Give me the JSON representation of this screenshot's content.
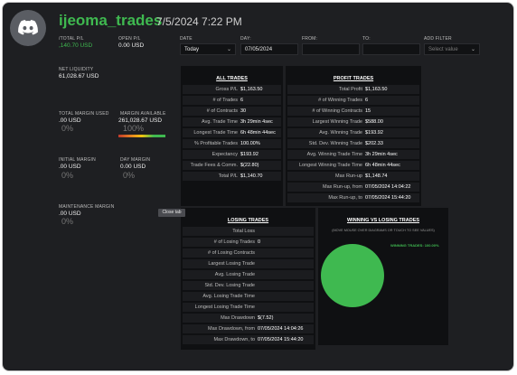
{
  "header": {
    "username": "ijeoma_trades",
    "datetime": "7/5/2024 7:22 PM"
  },
  "stats": {
    "total_pl_label": "/TOTAL P/L",
    "total_pl_value": ",140.70 USD",
    "open_pl_label": "OPEN P/L",
    "open_pl_value": "0.00 USD",
    "net_liquidity_label": "NET LIQUIDITY",
    "net_liquidity_value": "61,028.67 USD",
    "total_margin_used_label": "TOTAL MARGIN USED",
    "total_margin_used_value": ".00 USD",
    "total_margin_used_pct": "0%",
    "margin_available_label": "MARGIN AVAILABLE",
    "margin_available_value": "261,028.67 USD",
    "margin_available_pct": "100%",
    "initial_margin_label": "INITIAL MARGIN",
    "initial_margin_value": ".00 USD",
    "initial_margin_pct": "0%",
    "day_margin_label": "DAY MARGIN",
    "day_margin_value": "0.00 USD",
    "day_margin_pct": "0%",
    "maintenance_margin_label": "MAINTENANCE MARGIN",
    "maintenance_margin_value": ".00 USD",
    "maintenance_margin_pct": "0%"
  },
  "filters": {
    "date_label": "DATE",
    "date_value": "Today",
    "day_label": "DAY:",
    "day_value": "07/05/2024",
    "from_label": "FROM:",
    "to_label": "TO:",
    "add_filter_label": "ADD FILTER",
    "add_filter_placeholder": "Select value"
  },
  "all_trades": {
    "title": "ALL TRADES",
    "rows": [
      {
        "k": "Gross P/L",
        "v": "$1,163.50"
      },
      {
        "k": "# of Trades",
        "v": "6"
      },
      {
        "k": "# of Contracts",
        "v": "30"
      },
      {
        "k": "Avg. Trade Time",
        "v": "3h 29min 4sec"
      },
      {
        "k": "Longest Trade Time",
        "v": "6h 48min 44sec"
      },
      {
        "k": "% Profitable Trades",
        "v": "100.00%"
      },
      {
        "k": "Expectancy",
        "v": "$193.92"
      },
      {
        "k": "Trade Fees & Comm.",
        "v": "$(22.80)"
      },
      {
        "k": "Total P/L",
        "v": "$1,140.70"
      }
    ]
  },
  "profit_trades": {
    "title": "PROFIT TRADES",
    "rows": [
      {
        "k": "Total Profit",
        "v": "$1,163.50"
      },
      {
        "k": "# of Winning Trades",
        "v": "6"
      },
      {
        "k": "# of Winning Contracts",
        "v": "15"
      },
      {
        "k": "Largest Winning Trade",
        "v": "$588.00"
      },
      {
        "k": "Avg. Winning Trade",
        "v": "$193.92"
      },
      {
        "k": "Std. Dev. Winning Trade",
        "v": "$202.33"
      },
      {
        "k": "Avg. Winning Trade Time",
        "v": "3h 29min 4sec"
      },
      {
        "k": "Longest Winning Trade Time",
        "v": "6h 48min 44sec"
      },
      {
        "k": "Max Run-up",
        "v": "$1,148.74"
      },
      {
        "k": "Max Run-up, from",
        "v": "07/05/2024 14:04:22"
      },
      {
        "k": "Max Run-up, to",
        "v": "07/05/2024 15:44:20"
      }
    ]
  },
  "losing_trades": {
    "title": "LOSING TRADES",
    "rows": [
      {
        "k": "Total Loss",
        "v": ""
      },
      {
        "k": "# of Losing Trades",
        "v": "0"
      },
      {
        "k": "# of Losing Contracts",
        "v": ""
      },
      {
        "k": "Largest Losing Trade",
        "v": ""
      },
      {
        "k": "Avg. Losing Trade",
        "v": ""
      },
      {
        "k": "Std. Dev. Losing Trade",
        "v": ""
      },
      {
        "k": "Avg. Losing Trade Time",
        "v": ""
      },
      {
        "k": "Longest Losing Trade Time",
        "v": ""
      },
      {
        "k": "Max Drawdown",
        "v": "$(7.52)"
      },
      {
        "k": "Max Drawdown, from",
        "v": "07/05/2024 14:04:26"
      },
      {
        "k": "Max Drawdown, to",
        "v": "07/05/2024 15:44:20"
      }
    ]
  },
  "win_loss": {
    "title": "WINNING VS LOSING TRADES",
    "hint": "(MOVE MOUSE OVER DIAGRAMS OR TOUCH TO SEE VALUES)",
    "legend": "WINNING TRADES: 100.00%",
    "win_color": "#3fb950"
  },
  "tooltip": "Close tab",
  "colors": {
    "username": "#3fb950",
    "background": "#1e1f22"
  }
}
